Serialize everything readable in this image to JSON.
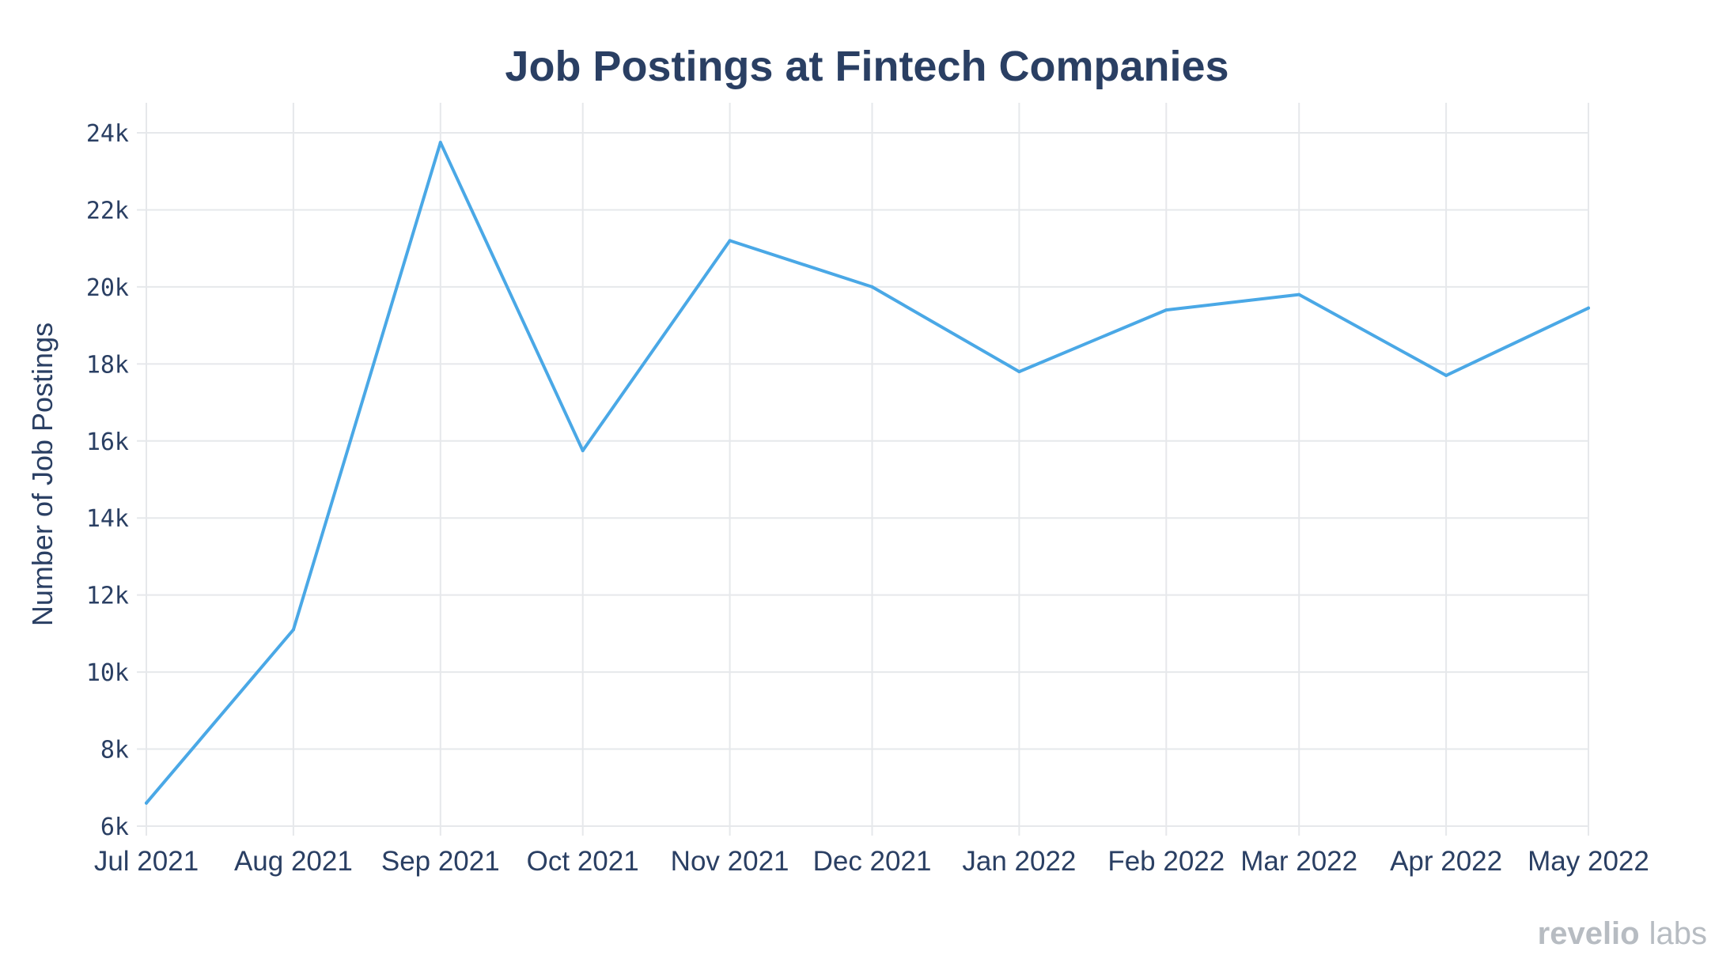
{
  "chart_data": {
    "type": "line",
    "title": "Job Postings at Fintech Companies",
    "xlabel": "",
    "ylabel": "Number of Job Postings",
    "x": [
      "Jul 2021",
      "Aug 2021",
      "Sep 2021",
      "Oct 2021",
      "Nov 2021",
      "Dec 2021",
      "Jan 2022",
      "Feb 2022",
      "Mar 2022",
      "Apr 2022",
      "May 2022"
    ],
    "x_dates": [
      "2021-07-01",
      "2021-08-01",
      "2021-09-01",
      "2021-10-01",
      "2021-11-01",
      "2021-12-01",
      "2022-01-01",
      "2022-02-01",
      "2022-03-01",
      "2022-04-01",
      "2022-05-01"
    ],
    "series": [
      {
        "values": [
          6600,
          11100,
          23750,
          15750,
          21200,
          20000,
          17800,
          19400,
          19800,
          17700,
          19450
        ]
      }
    ],
    "ylim": [
      6000,
      24000
    ],
    "yticks": [
      6000,
      8000,
      10000,
      12000,
      14000,
      16000,
      18000,
      20000,
      22000,
      24000
    ],
    "ytick_labels": [
      "6k",
      "8k",
      "10k",
      "12k",
      "14k",
      "16k",
      "18k",
      "20k",
      "22k",
      "24k"
    ],
    "grid": true,
    "legend": "none",
    "line_color": "#4aa8e6"
  },
  "branding": {
    "logo_text_a": "revelio",
    "logo_text_b": "labs"
  }
}
